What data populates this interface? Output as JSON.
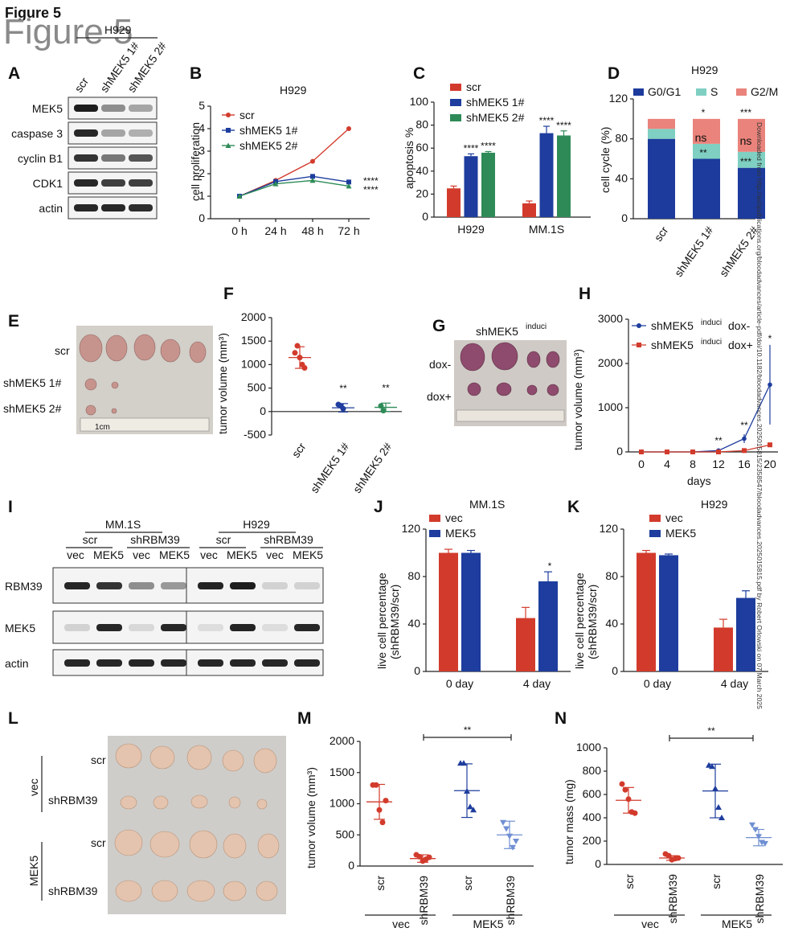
{
  "figure_title": "Figure 5",
  "watermark": "Downloaded from http://ashpublications.org/bloodadvances/article-pdf/doi/10.1182/bloodadvances.2025015815/2358547/bloodadvances.2025015815.pdf by Robert Orlowski on 07 March 2025",
  "colors": {
    "red": "#d23b2c",
    "blue": "#1e3d9e",
    "green": "#2e8b57",
    "teal": "#7fd0c2",
    "salmon": "#e9837b",
    "navy": "#1c3b9c"
  },
  "panels": {
    "A": {
      "label": "A",
      "cell": "H929",
      "lanes": [
        "scr",
        "shMEK5 1#",
        "shMEK5 2#"
      ],
      "rows": [
        "MEK5",
        "caspase 3",
        "cyclin B1",
        "CDK1",
        "actin"
      ]
    },
    "B": {
      "label": "B",
      "title": "H929",
      "ylabel": "cell proliferation",
      "legend": [
        "scr",
        "shMEK5 1#",
        "shMEK5 2#"
      ],
      "x": [
        "0 h",
        "24 h",
        "48 h",
        "72 h"
      ],
      "yticks": [
        "0",
        "1",
        "2",
        "3",
        "4",
        "5"
      ],
      "sig": [
        "****",
        "****"
      ]
    },
    "C": {
      "label": "C",
      "ylabel": "apoptosis %",
      "legend": [
        "scr",
        "shMEK5 1#",
        "shMEK5 2#"
      ],
      "groups": [
        "H929",
        "MM.1S"
      ],
      "yticks": [
        "0",
        "20",
        "40",
        "60",
        "80",
        "100"
      ]
    },
    "D": {
      "label": "D",
      "title": "H929",
      "ylabel": "cell cycle (%)",
      "legend": [
        "G0/G1",
        "S",
        "G2/M"
      ],
      "x": [
        "scr",
        "shMEK5 1#",
        "shMEK5 2#"
      ],
      "yticks": [
        "0",
        "40",
        "80",
        "120"
      ]
    },
    "E": {
      "label": "E",
      "rows": [
        "scr",
        "shMEK5 1#",
        "shMEK5 2#"
      ],
      "ruler": "1cm"
    },
    "F": {
      "label": "F",
      "ylabel": "tumor volume (mm³)",
      "x": [
        "scr",
        "shMEK5 1#",
        "shMEK5 2#"
      ],
      "yticks": [
        "-500",
        "0",
        "500",
        "1000",
        "1500",
        "2000"
      ]
    },
    "G": {
      "label": "G",
      "title": "shMEK5",
      "title_sup": "induci",
      "rows": [
        "dox-",
        "dox+"
      ]
    },
    "H": {
      "label": "H",
      "ylabel": "tumor volume (mm³)",
      "xlabel": "days",
      "x": [
        "0",
        "4",
        "8",
        "12",
        "16",
        "20"
      ],
      "yticks": [
        "0",
        "1000",
        "2000",
        "3000"
      ],
      "legend_main": "shMEK5",
      "legend_sup": "induci",
      "legend_tail": [
        "dox-",
        "dox+"
      ]
    },
    "I": {
      "label": "I",
      "cells": [
        "MM.1S",
        "H929"
      ],
      "sub": [
        "scr",
        "shRBM39"
      ],
      "lanes": [
        "vec",
        "MEK5",
        "vec",
        "MEK5"
      ],
      "rows": [
        "RBM39",
        "MEK5",
        "actin"
      ]
    },
    "J": {
      "label": "J",
      "title": "MM.1S",
      "ylabel": "live cell percentage (shRBM39/scr)",
      "legend": [
        "vec",
        "MEK5"
      ],
      "x": [
        "0 day",
        "4 day"
      ],
      "yticks": [
        "0",
        "40",
        "80",
        "120"
      ]
    },
    "K": {
      "label": "K",
      "title": "H929",
      "ylabel": "live cell percentage (shRBM39/scr)",
      "legend": [
        "vec",
        "MEK5"
      ],
      "x": [
        "0 day",
        "4 day"
      ],
      "yticks": [
        "0",
        "40",
        "80",
        "120"
      ]
    },
    "L": {
      "label": "L",
      "groups": [
        "vec",
        "MEK5"
      ],
      "rows": [
        "scr",
        "shRBM39",
        "scr",
        "shRBM39"
      ]
    },
    "M": {
      "label": "M",
      "ylabel": "tumor volume (mm³)",
      "x": [
        "scr",
        "shRBM39",
        "scr",
        "shRBM39"
      ],
      "groups": [
        "vec",
        "MEK5"
      ],
      "yticks": [
        "0",
        "500",
        "1000",
        "1500",
        "2000"
      ],
      "sig": "**"
    },
    "N": {
      "label": "N",
      "ylabel": "tumor mass (mg)",
      "x": [
        "scr",
        "shRBM39",
        "scr",
        "shRBM39"
      ],
      "groups": [
        "vec",
        "MEK5"
      ],
      "yticks": [
        "0",
        "200",
        "400",
        "600",
        "800",
        "1000"
      ],
      "sig": "**"
    }
  },
  "chart_data": [
    {
      "panel": "B",
      "type": "line",
      "title": "H929",
      "ylabel": "cell proliferation",
      "categories": [
        "0 h",
        "24 h",
        "48 h",
        "72 h"
      ],
      "ylim": [
        0,
        5
      ],
      "series": [
        {
          "name": "scr",
          "values": [
            1,
            1.7,
            2.55,
            4.0
          ]
        },
        {
          "name": "shMEK5 1#",
          "values": [
            1,
            1.65,
            1.88,
            1.63
          ]
        },
        {
          "name": "shMEK5 2#",
          "values": [
            1,
            1.55,
            1.7,
            1.45
          ]
        }
      ]
    },
    {
      "panel": "C",
      "type": "bar",
      "ylabel": "apoptosis %",
      "categories": [
        "H929",
        "MM.1S"
      ],
      "ylim": [
        0,
        100
      ],
      "series": [
        {
          "name": "scr",
          "values": [
            25,
            12
          ]
        },
        {
          "name": "shMEK5 1#",
          "values": [
            53,
            73
          ]
        },
        {
          "name": "shMEK5 2#",
          "values": [
            56,
            71
          ]
        }
      ]
    },
    {
      "panel": "D",
      "type": "bar",
      "title": "H929",
      "ylabel": "cell cycle (%)",
      "categories": [
        "scr",
        "shMEK5 1#",
        "shMEK5 2#"
      ],
      "ylim": [
        0,
        120
      ],
      "series": [
        {
          "name": "G0/G1",
          "values": [
            80,
            60,
            51
          ]
        },
        {
          "name": "S",
          "values": [
            10,
            15,
            16
          ]
        },
        {
          "name": "G2/M",
          "values": [
            10,
            25,
            33
          ]
        }
      ]
    },
    {
      "panel": "F",
      "type": "scatter",
      "ylabel": "tumor volume (mm³)",
      "categories": [
        "scr",
        "shMEK5 1#",
        "shMEK5 2#"
      ],
      "ylim": [
        -500,
        2000
      ],
      "means": [
        1150,
        80,
        90
      ]
    },
    {
      "panel": "H",
      "type": "line",
      "xlabel": "days",
      "ylabel": "tumor volume (mm³)",
      "x": [
        0,
        4,
        8,
        12,
        16,
        20
      ],
      "ylim": [
        0,
        3000
      ],
      "series": [
        {
          "name": "dox-",
          "values": [
            0,
            0,
            0,
            30,
            300,
            1520
          ]
        },
        {
          "name": "dox+",
          "values": [
            0,
            0,
            0,
            0,
            30,
            160
          ]
        }
      ]
    },
    {
      "panel": "J",
      "type": "bar",
      "title": "MM.1S",
      "categories": [
        "0 day",
        "4 day"
      ],
      "ylim": [
        0,
        120
      ],
      "series": [
        {
          "name": "vec",
          "values": [
            100,
            45
          ]
        },
        {
          "name": "MEK5",
          "values": [
            100,
            76
          ]
        }
      ]
    },
    {
      "panel": "K",
      "type": "bar",
      "title": "H929",
      "categories": [
        "0 day",
        "4 day"
      ],
      "ylim": [
        0,
        120
      ],
      "series": [
        {
          "name": "vec",
          "values": [
            100,
            37
          ]
        },
        {
          "name": "MEK5",
          "values": [
            98,
            62
          ]
        }
      ]
    },
    {
      "panel": "M",
      "type": "scatter",
      "ylabel": "tumor volume (mm³)",
      "categories": [
        "scr",
        "shRBM39",
        "scr",
        "shRBM39"
      ],
      "ylim": [
        0,
        2000
      ],
      "means": [
        1030,
        120,
        1210,
        500
      ]
    },
    {
      "panel": "N",
      "type": "scatter",
      "ylabel": "tumor mass (mg)",
      "categories": [
        "scr",
        "shRBM39",
        "scr",
        "shRBM39"
      ],
      "ylim": [
        0,
        1000
      ],
      "means": [
        550,
        55,
        630,
        230
      ]
    }
  ]
}
